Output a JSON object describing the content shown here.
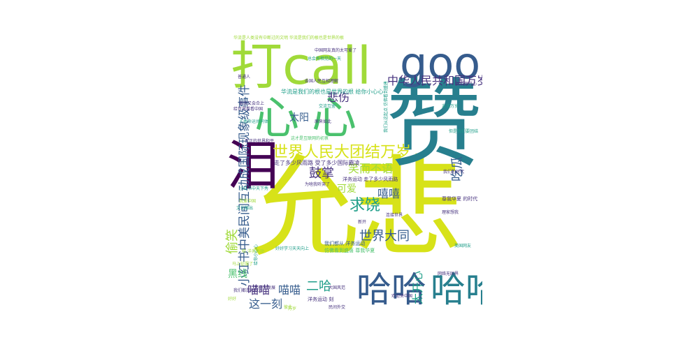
{
  "colors": {
    "background": "#ffffff",
    "yellow": "#d7e219",
    "lime": "#a0da39",
    "green": "#4ac16d",
    "teal": "#1f9e89",
    "blue": "#277f8e",
    "navy": "#365c8d",
    "indigo": "#46327e",
    "purple": "#440154"
  },
  "words": [
    {
      "text": "允悲",
      "color": "yellow"
    },
    {
      "text": "赞",
      "color": "blue"
    },
    {
      "text": "打call",
      "color": "lime"
    },
    {
      "text": "good",
      "color": "navy"
    },
    {
      "text": "心心",
      "color": "green"
    },
    {
      "text": "泪",
      "color": "purple"
    },
    {
      "text": "哈哈",
      "color": "navy"
    },
    {
      "text": "哈哈",
      "color": "blue"
    },
    {
      "text": "世界人民大团结万岁",
      "color": "yellow"
    },
    {
      "text": "小红书中美民间互动成国际现象级事件",
      "color": "navy"
    },
    {
      "text": "中华人民共和国万岁",
      "color": "indigo"
    },
    {
      "text": "鼓掌",
      "color": "indigo"
    },
    {
      "text": "笑而不语",
      "color": "lime"
    },
    {
      "text": "求饶",
      "color": "teal"
    },
    {
      "text": "世界大同",
      "color": "navy"
    },
    {
      "text": "嘻嘻",
      "color": "navy"
    },
    {
      "text": "可爱",
      "color": "lime"
    },
    {
      "text": "悲伤",
      "color": "indigo"
    },
    {
      "text": "太阳",
      "color": "navy"
    },
    {
      "text": "吃瓜",
      "color": "navy"
    },
    {
      "text": "偷笑",
      "color": "lime"
    },
    {
      "text": "黑线",
      "color": "green"
    },
    {
      "text": "喵喵",
      "color": "indigo"
    },
    {
      "text": "喵喵",
      "color": "navy"
    },
    {
      "text": "二哈",
      "color": "teal"
    },
    {
      "text": "这一刻",
      "color": "navy"
    },
    {
      "text": "太开心",
      "color": "teal"
    },
    {
      "text": "华流是我们的根也是世界的根 给你小心心",
      "color": "teal"
    },
    {
      "text": "走了多少风雨路 受了多少国际霸凌",
      "color": "indigo"
    },
    {
      "text": "华流是人类没有中断过的文明 华流是我们的根也是世界的根",
      "color": "lime"
    },
    {
      "text": "我们都从 洋务运动",
      "color": "navy"
    },
    {
      "text": "洋务运动 走了多少风雨路",
      "color": "indigo"
    },
    {
      "text": "尊我华夏 的时代",
      "color": "indigo"
    },
    {
      "text": "我们很开心",
      "color": "indigo"
    },
    {
      "text": "仿佛看到盛唐 尊我华夏",
      "color": "green"
    },
    {
      "text": "连接世界",
      "color": "indigo"
    },
    {
      "text": "理家想我",
      "color": "indigo"
    },
    {
      "text": "洋务运动 刻",
      "color": "indigo"
    },
    {
      "text": "给你小心心",
      "color": "teal"
    },
    {
      "text": "这才是互联网的初衷",
      "color": "green"
    },
    {
      "text": "小红书中天下秀",
      "color": "teal"
    },
    {
      "text": "为啥我听哭了",
      "color": "indigo"
    },
    {
      "text": "原来如此",
      "color": "indigo"
    },
    {
      "text": "我们从这起点 仿佛看到盛唐",
      "color": "teal"
    },
    {
      "text": "但是我们要团结",
      "color": "teal"
    },
    {
      "text": "各国人民互相理解",
      "color": "indigo"
    },
    {
      "text": "真正的世界和平",
      "color": "indigo"
    },
    {
      "text": "我们的时代",
      "color": "indigo"
    },
    {
      "text": "人类命运共同体",
      "color": "teal"
    },
    {
      "text": "给世界看看中国",
      "color": "indigo"
    },
    {
      "text": "总会有相见的一天",
      "color": "teal"
    },
    {
      "text": "哈 洋务运动",
      "color": "lime"
    },
    {
      "text": "马上征服了",
      "color": "lime"
    },
    {
      "text": "新开",
      "color": "indigo"
    },
    {
      "text": "普通人",
      "color": "indigo"
    },
    {
      "text": "很快又会合上",
      "color": "indigo"
    },
    {
      "text": "中国网友真的太可爱了",
      "color": "indigo"
    },
    {
      "text": "好好学习天天向上",
      "color": "teal"
    },
    {
      "text": "我们都是地球人",
      "color": "indigo"
    },
    {
      "text": "文化输出",
      "color": "teal"
    },
    {
      "text": "友谊万岁",
      "color": "teal"
    },
    {
      "text": "大国风范",
      "color": "indigo"
    },
    {
      "text": "网络无国界",
      "color": "indigo"
    },
    {
      "text": "我爱中国",
      "color": "lime"
    },
    {
      "text": "和平与发展",
      "color": "indigo"
    },
    {
      "text": "交流互鉴",
      "color": "teal"
    },
    {
      "text": "欢迎来中国",
      "color": "indigo"
    },
    {
      "text": "万岁",
      "color": "lime"
    },
    {
      "text": "好好",
      "color": "lime"
    },
    {
      "text": "彼此",
      "color": "lime"
    },
    {
      "text": "民间外交",
      "color": "indigo"
    },
    {
      "text": "美国网友",
      "color": "teal"
    }
  ]
}
